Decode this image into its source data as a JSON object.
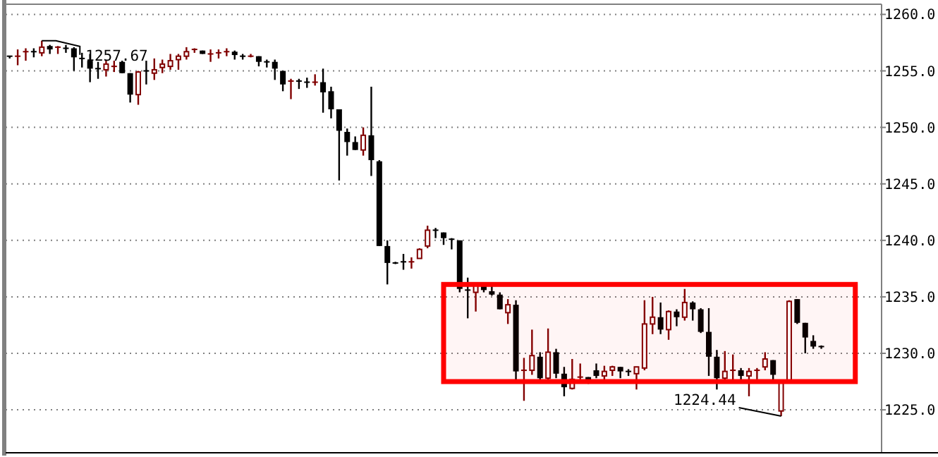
{
  "chart_data": {
    "type": "candlestick",
    "categories": [
      null,
      null,
      null,
      null,
      null,
      null,
      null,
      null,
      null,
      null,
      null,
      null,
      null,
      null,
      null,
      null,
      null,
      null,
      null,
      null,
      null,
      null,
      null,
      null,
      null,
      null,
      null,
      null,
      null,
      null,
      null,
      null,
      null,
      null,
      null,
      null,
      null,
      null,
      null,
      null,
      null,
      null,
      null,
      null,
      null,
      null,
      null,
      null,
      null,
      null,
      null,
      null,
      null,
      null,
      null,
      null,
      null,
      null,
      null,
      null,
      null,
      null,
      null,
      null,
      null,
      null,
      null,
      null,
      null,
      null,
      null,
      null,
      null,
      null,
      null,
      null,
      null,
      null,
      null,
      null,
      null,
      null,
      null,
      null,
      null,
      null,
      null,
      null,
      null,
      null,
      null,
      null,
      null,
      null,
      null,
      null,
      null,
      null,
      null,
      null,
      null,
      null,
      null,
      null,
      null,
      null,
      null,
      null,
      null
    ],
    "ohlc": [
      [
        1256.3,
        1256.3,
        1256.1,
        1256.1
      ],
      [
        1256.1,
        1256.9,
        1255.5,
        1256.3
      ],
      [
        1256.5,
        1257.0,
        1255.9,
        1256.7
      ],
      [
        1256.7,
        1257.0,
        1256.2,
        1256.6
      ],
      [
        1256.6,
        1257.67,
        1256.3,
        1257.1
      ],
      [
        1257.2,
        1257.3,
        1256.5,
        1256.9
      ],
      [
        1257.0,
        1257.2,
        1256.5,
        1257.1
      ],
      [
        1257.0,
        1257.3,
        1256.6,
        1256.9
      ],
      [
        1257.0,
        1257.1,
        1255.0,
        1256.2
      ],
      [
        1256.1,
        1256.6,
        1255.3,
        1256.0
      ],
      [
        1255.9,
        1256.5,
        1254.0,
        1255.2
      ],
      [
        1255.2,
        1255.8,
        1254.3,
        1255.1
      ],
      [
        1255.1,
        1255.9,
        1254.5,
        1255.6
      ],
      [
        1255.3,
        1255.9,
        1254.9,
        1255.4
      ],
      [
        1255.8,
        1255.9,
        1254.8,
        1254.8
      ],
      [
        1254.8,
        1254.8,
        1252.2,
        1252.9
      ],
      [
        1252.9,
        1255.0,
        1252.0,
        1254.9
      ],
      [
        1255.0,
        1255.9,
        1253.8,
        1254.9
      ],
      [
        1254.8,
        1256.1,
        1254.2,
        1255.1
      ],
      [
        1255.3,
        1256.0,
        1254.8,
        1255.6
      ],
      [
        1255.4,
        1256.5,
        1255.1,
        1255.9
      ],
      [
        1256.0,
        1256.5,
        1255.1,
        1256.3
      ],
      [
        1256.3,
        1257.1,
        1256.0,
        1256.7
      ],
      [
        1256.8,
        1257.0,
        1256.6,
        1256.9
      ],
      [
        1256.8,
        1256.8,
        1256.5,
        1256.5
      ],
      [
        1256.4,
        1256.9,
        1255.8,
        1256.5
      ],
      [
        1256.5,
        1256.9,
        1256.1,
        1256.6
      ],
      [
        1256.6,
        1257.0,
        1256.3,
        1256.7
      ],
      [
        1256.7,
        1256.8,
        1256.0,
        1256.4
      ],
      [
        1256.3,
        1256.5,
        1256.0,
        1256.2
      ],
      [
        1256.2,
        1256.5,
        1256.2,
        1256.3
      ],
      [
        1256.3,
        1256.3,
        1255.4,
        1255.8
      ],
      [
        1255.8,
        1256.0,
        1255.3,
        1255.6
      ],
      [
        1255.8,
        1256.0,
        1254.2,
        1255.2
      ],
      [
        1255.0,
        1255.0,
        1253.2,
        1253.8
      ],
      [
        1253.9,
        1254.3,
        1252.5,
        1254.1
      ],
      [
        1254.1,
        1254.3,
        1253.4,
        1254.0
      ],
      [
        1254.0,
        1254.4,
        1253.5,
        1253.9
      ],
      [
        1253.9,
        1254.7,
        1253.7,
        1254.0
      ],
      [
        1254.0,
        1255.2,
        1251.3,
        1253.1
      ],
      [
        1253.2,
        1253.6,
        1250.8,
        1251.6
      ],
      [
        1251.6,
        1251.6,
        1245.3,
        1249.7
      ],
      [
        1249.6,
        1249.9,
        1247.5,
        1248.7
      ],
      [
        1248.7,
        1249.2,
        1248.0,
        1248.0
      ],
      [
        1248.0,
        1250.0,
        1247.5,
        1249.3
      ],
      [
        1249.3,
        1253.6,
        1245.7,
        1247.1
      ],
      [
        1247.0,
        1247.1,
        1239.5,
        1239.5
      ],
      [
        1239.5,
        1240.0,
        1236.1,
        1238.0
      ],
      [
        1238.0,
        1238.1,
        1237.9,
        1237.9
      ],
      [
        1238.1,
        1238.8,
        1237.4,
        1238.0
      ],
      [
        1237.9,
        1238.5,
        1237.5,
        1238.1
      ],
      [
        1238.4,
        1239.3,
        1238.4,
        1239.2
      ],
      [
        1239.5,
        1241.3,
        1239.3,
        1240.9
      ],
      [
        1240.9,
        1241.1,
        1240.2,
        1240.7
      ],
      [
        1240.7,
        1240.7,
        1239.6,
        1240.2
      ],
      [
        1240.1,
        1240.2,
        1239.2,
        1240.0
      ],
      [
        1240.0,
        1240.0,
        1235.4,
        1235.7
      ],
      [
        1235.6,
        1236.7,
        1233.1,
        1235.5
      ],
      [
        1235.4,
        1236.1,
        1233.7,
        1236.0
      ],
      [
        1236.0,
        1236.0,
        1235.4,
        1235.6
      ],
      [
        1235.5,
        1236.0,
        1235.1,
        1235.2
      ],
      [
        1235.2,
        1235.4,
        1233.9,
        1233.9
      ],
      [
        1233.6,
        1234.8,
        1232.6,
        1234.3
      ],
      [
        1234.3,
        1234.7,
        1227.4,
        1228.4
      ],
      [
        1228.4,
        1229.6,
        1225.8,
        1228.5
      ],
      [
        1228.5,
        1232.1,
        1228.1,
        1229.8
      ],
      [
        1229.7,
        1230.1,
        1227.4,
        1227.8
      ],
      [
        1227.8,
        1232.2,
        1227.7,
        1230.1
      ],
      [
        1230.1,
        1230.4,
        1227.8,
        1228.2
      ],
      [
        1228.2,
        1228.8,
        1226.2,
        1227.0
      ],
      [
        1226.9,
        1229.5,
        1226.8,
        1227.7
      ],
      [
        1227.8,
        1229.1,
        1227.7,
        1227.9
      ],
      [
        1227.9,
        1227.9,
        1227.3,
        1227.4
      ],
      [
        1228.5,
        1229.1,
        1227.8,
        1228.0
      ],
      [
        1228.0,
        1228.9,
        1227.5,
        1228.4
      ],
      [
        1228.5,
        1228.9,
        1228.0,
        1228.8
      ],
      [
        1228.8,
        1228.8,
        1227.8,
        1228.4
      ],
      [
        1228.4,
        1228.6,
        1228.0,
        1228.2
      ],
      [
        1228.2,
        1228.8,
        1226.8,
        1228.8
      ],
      [
        1228.7,
        1234.7,
        1228.5,
        1232.6
      ],
      [
        1232.6,
        1235.0,
        1231.7,
        1233.2
      ],
      [
        1233.2,
        1234.5,
        1231.7,
        1232.1
      ],
      [
        1232.1,
        1233.8,
        1231.2,
        1233.7
      ],
      [
        1233.7,
        1233.9,
        1232.4,
        1233.2
      ],
      [
        1233.2,
        1235.7,
        1232.9,
        1234.5
      ],
      [
        1234.5,
        1234.6,
        1232.9,
        1233.9
      ],
      [
        1233.9,
        1234.0,
        1231.8,
        1231.9
      ],
      [
        1231.9,
        1234.0,
        1228.0,
        1229.7
      ],
      [
        1229.7,
        1230.3,
        1226.8,
        1227.8
      ],
      [
        1227.8,
        1230.2,
        1227.4,
        1228.4
      ],
      [
        1228.4,
        1229.9,
        1227.6,
        1228.5
      ],
      [
        1228.5,
        1228.7,
        1227.6,
        1228.0
      ],
      [
        1228.0,
        1228.7,
        1226.2,
        1228.4
      ],
      [
        1228.4,
        1228.7,
        1227.7,
        1228.5
      ],
      [
        1228.8,
        1230.1,
        1228.5,
        1229.5
      ],
      [
        1229.4,
        1229.4,
        1227.4,
        1228.1
      ],
      [
        1224.9,
        1227.5,
        1224.44,
        1227.4
      ],
      [
        1227.5,
        1234.7,
        1227.4,
        1234.6
      ],
      [
        1234.8,
        1234.8,
        1232.6,
        1232.7
      ],
      [
        1232.7,
        1232.7,
        1230.0,
        1231.4
      ],
      [
        1231.1,
        1231.6,
        1230.4,
        1230.6
      ],
      [
        1230.6,
        1230.7,
        1230.4,
        1230.5
      ],
      null,
      null,
      null,
      null,
      null,
      null,
      null
    ],
    "colors": [
      "#000000",
      "#800000",
      "#800000",
      "#000000",
      "#800000",
      "#000000",
      "#800000",
      "#000000",
      "#000000",
      "#000000",
      "#000000",
      "#000000",
      "#800000",
      "#800000",
      "#000000",
      "#000000",
      "#800000",
      "#000000",
      "#800000",
      "#800000",
      "#800000",
      "#800000",
      "#800000",
      "#800000",
      "#000000",
      "#800000",
      "#800000",
      "#800000",
      "#000000",
      "#000000",
      "#800000",
      "#000000",
      "#000000",
      "#000000",
      "#000000",
      "#800000",
      "#000000",
      "#000000",
      "#800000",
      "#000000",
      "#000000",
      "#000000",
      "#000000",
      "#000000",
      "#800000",
      "#000000",
      "#000000",
      "#000000",
      "#000000",
      "#000000",
      "#800000",
      "#800000",
      "#800000",
      "#000000",
      "#000000",
      "#000000",
      "#000000",
      "#000000",
      "#800000",
      "#000000",
      "#000000",
      "#000000",
      "#800000",
      "#000000",
      "#800000",
      "#800000",
      "#000000",
      "#800000",
      "#000000",
      "#000000",
      "#800000",
      "#800000",
      "#000000",
      "#000000",
      "#800000",
      "#800000",
      "#000000",
      "#000000",
      "#800000",
      "#800000",
      "#800000",
      "#000000",
      "#800000",
      "#000000",
      "#800000",
      "#000000",
      "#000000",
      "#000000",
      "#000000",
      "#800000",
      "#800000",
      "#000000",
      "#800000",
      "#800000",
      "#800000",
      "#000000",
      "#800000",
      "#800000",
      "#000000",
      "#000000",
      "#000000",
      "#000000",
      null,
      null,
      null,
      null,
      null,
      null,
      null
    ],
    "ylim": [
      1221.2,
      1260.9
    ],
    "yticks": [
      {
        "value": 1225,
        "label": "1225.0"
      },
      {
        "value": 1230,
        "label": "1230.0"
      },
      {
        "value": 1235,
        "label": "1235.0"
      },
      {
        "value": 1240,
        "label": "1240.0"
      },
      {
        "value": 1245,
        "label": "1245.0"
      },
      {
        "value": 1250,
        "label": "1250.0"
      },
      {
        "value": 1255,
        "label": "1255.0"
      },
      {
        "value": 1260,
        "label": "1260.0"
      }
    ],
    "grid": "y",
    "tick_labels": "y",
    "bands": [
      {
        "axis": "y",
        "from": 1227.5,
        "to": 1236.1,
        "color": "#ff0000"
      }
    ],
    "annotations": [
      "1257.67",
      "1224.44"
    ]
  }
}
